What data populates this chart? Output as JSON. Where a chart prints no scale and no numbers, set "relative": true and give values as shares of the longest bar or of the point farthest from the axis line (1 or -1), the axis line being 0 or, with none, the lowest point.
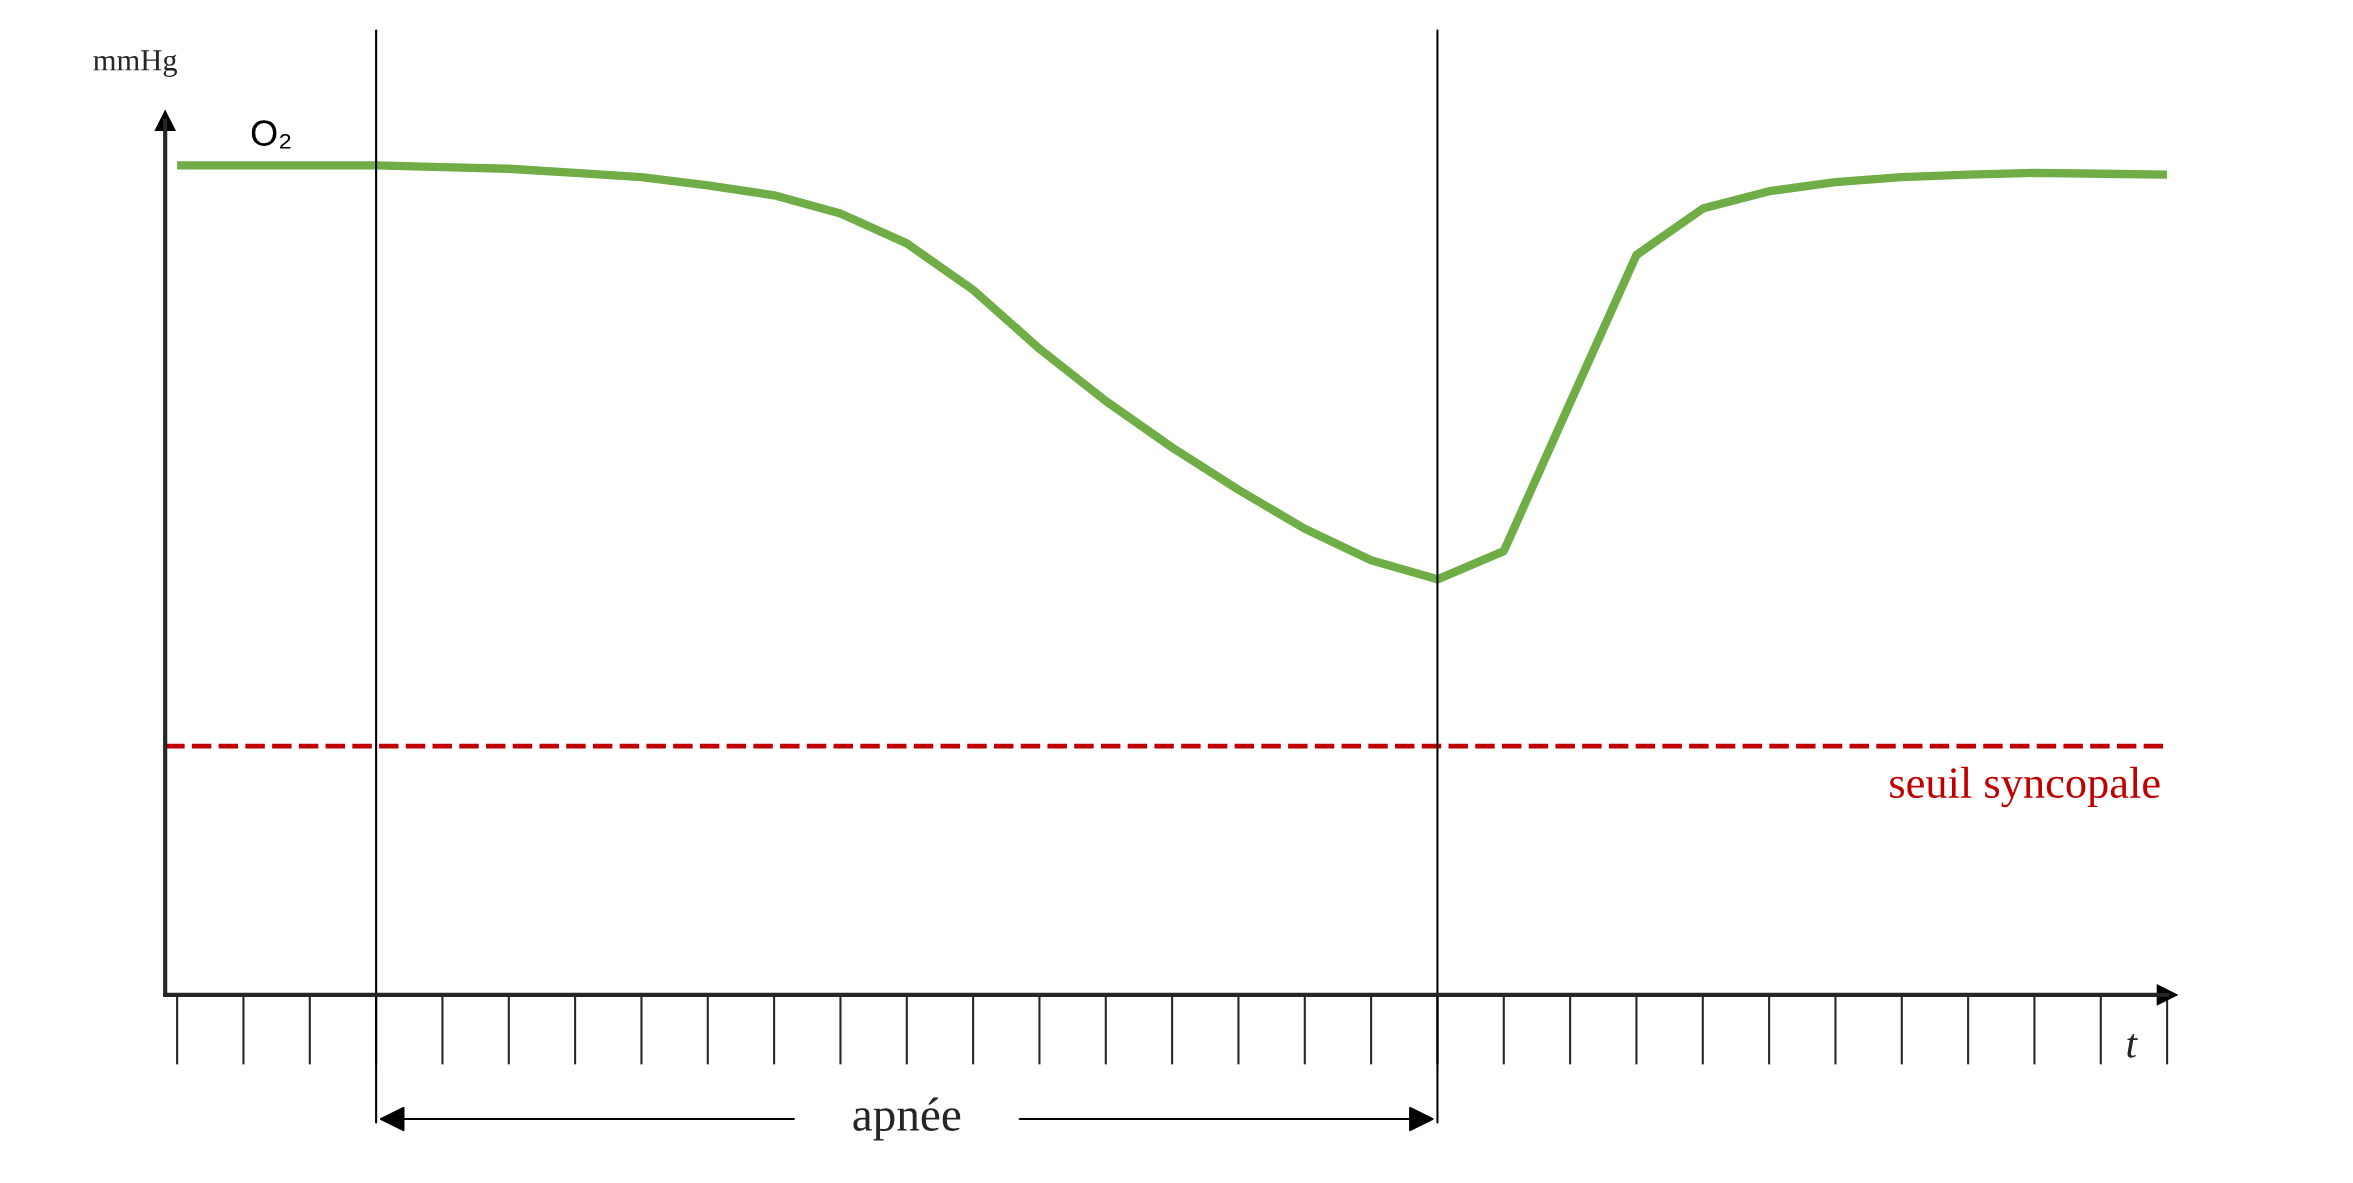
{
  "chart_data": {
    "type": "line",
    "relative": true,
    "ylabel": "mmHg",
    "xlabel": "t",
    "categories": [
      null,
      null,
      null,
      null,
      null,
      null,
      null,
      null,
      null,
      null,
      null,
      null,
      null,
      null,
      null,
      null,
      null,
      null,
      null,
      null,
      null,
      null,
      null,
      null,
      null,
      null,
      null,
      null,
      null,
      null,
      null
    ],
    "grid": false,
    "legend": false,
    "marker": "none",
    "line_style": "solid",
    "series": [
      {
        "name": "O₂",
        "color": "#70ad47",
        "values": [
          1.0,
          1.0,
          1.0,
          1.0,
          0.998,
          0.996,
          0.991,
          0.986,
          0.976,
          0.964,
          0.942,
          0.906,
          0.85,
          0.779,
          0.716,
          0.66,
          0.609,
          0.562,
          0.524,
          0.501,
          0.535,
          0.714,
          0.892,
          0.948,
          0.969,
          0.98,
          0.986,
          0.989,
          0.991,
          0.99,
          0.989
        ]
      }
    ],
    "ref_lines": [
      {
        "axis": "y",
        "value": 0.3,
        "label": "seuil syncopale",
        "color": "#c00000",
        "line_style": "dashed"
      }
    ],
    "annotations": [
      "apnée"
    ]
  }
}
